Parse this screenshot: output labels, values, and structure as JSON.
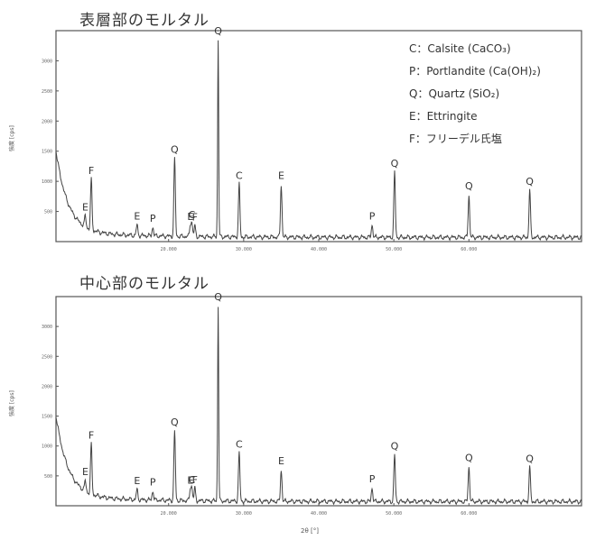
{
  "chart_data": [
    {
      "type": "line",
      "title": "表層部のモルタル",
      "ylabel": "強度 [cps]",
      "ytick_labels": [
        "3000",
        "2500",
        "2000",
        "1500",
        "1000",
        "500"
      ],
      "xtick_labels": [
        "20.000",
        "30.000",
        "40.000",
        "50.000",
        "60.000"
      ],
      "peaks": [
        {
          "label": "E",
          "x": 8.9,
          "y": 430
        },
        {
          "label": "F",
          "x": 9.7,
          "y": 1030
        },
        {
          "label": "E",
          "x": 15.8,
          "y": 280
        },
        {
          "label": "P",
          "x": 17.9,
          "y": 240
        },
        {
          "label": "Q",
          "x": 20.8,
          "y": 1380
        },
        {
          "label": "E",
          "x": 22.9,
          "y": 270
        },
        {
          "label": "C",
          "x": 23.1,
          "y": 300
        },
        {
          "label": "F",
          "x": 23.5,
          "y": 260
        },
        {
          "label": "Q",
          "x": 26.6,
          "y": 3350
        },
        {
          "label": "C",
          "x": 29.4,
          "y": 950
        },
        {
          "label": "E",
          "x": 35.0,
          "y": 950
        },
        {
          "label": "P",
          "x": 47.1,
          "y": 280
        },
        {
          "label": "Q",
          "x": 50.1,
          "y": 1150
        },
        {
          "label": "Q",
          "x": 60.0,
          "y": 780
        },
        {
          "label": "Q",
          "x": 68.1,
          "y": 850
        }
      ]
    },
    {
      "type": "line",
      "title": "中心部のモルタル",
      "ylabel": "強度 [cps]",
      "ytick_labels": [
        "3000",
        "2500",
        "2000",
        "1500",
        "1000",
        "500"
      ],
      "xtick_labels": [
        "20.000",
        "30.000",
        "40.000",
        "50.000",
        "60.000"
      ],
      "xlabel": "2θ [°]",
      "peaks": [
        {
          "label": "E",
          "x": 8.9,
          "y": 420
        },
        {
          "label": "F",
          "x": 9.7,
          "y": 1030
        },
        {
          "label": "E",
          "x": 15.8,
          "y": 270
        },
        {
          "label": "P",
          "x": 17.9,
          "y": 250
        },
        {
          "label": "Q",
          "x": 20.8,
          "y": 1250
        },
        {
          "label": "E",
          "x": 22.9,
          "y": 280
        },
        {
          "label": "C",
          "x": 23.1,
          "y": 290
        },
        {
          "label": "F",
          "x": 23.5,
          "y": 290
        },
        {
          "label": "Q",
          "x": 26.6,
          "y": 3350
        },
        {
          "label": "C",
          "x": 29.4,
          "y": 880
        },
        {
          "label": "E",
          "x": 35.0,
          "y": 600
        },
        {
          "label": "P",
          "x": 47.1,
          "y": 300
        },
        {
          "label": "Q",
          "x": 50.1,
          "y": 850
        },
        {
          "label": "Q",
          "x": 60.0,
          "y": 660
        },
        {
          "label": "Q",
          "x": 68.1,
          "y": 640
        }
      ]
    }
  ],
  "legend": [
    "C：Calsite (CaCO₃)",
    "P：Portlandite (Ca(OH)₂)",
    "Q：Quartz (SiO₂)",
    "E：Ettringite",
    "F：フリーデル氏塩"
  ]
}
